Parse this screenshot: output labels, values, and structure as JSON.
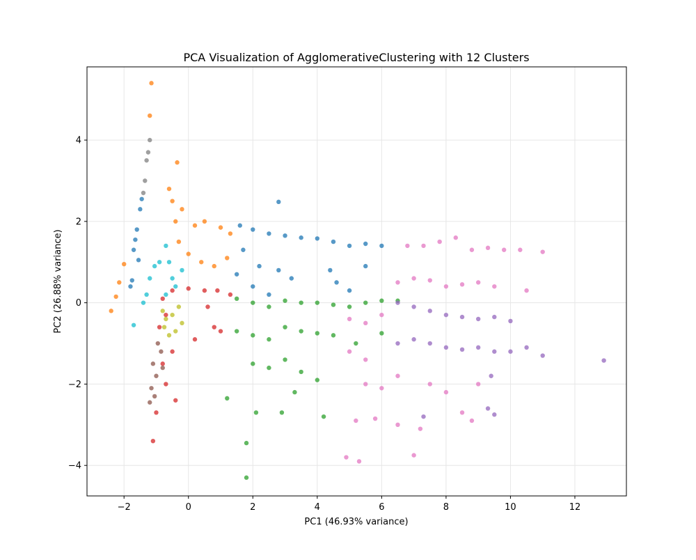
{
  "chart_data": {
    "type": "scatter",
    "title": "PCA Visualization of AgglomerativeClustering with 12 Clusters",
    "xlabel": "PC1 (46.93% variance)",
    "ylabel": "PC2 (26.88% variance)",
    "xlim": [
      -3.15,
      13.6
    ],
    "ylim": [
      -4.75,
      5.8
    ],
    "xticks": [
      -2,
      0,
      2,
      4,
      6,
      8,
      10,
      12
    ],
    "yticks": [
      -4,
      -2,
      0,
      2,
      4
    ],
    "xtick_labels": [
      "−2",
      "0",
      "2",
      "4",
      "6",
      "8",
      "10",
      "12"
    ],
    "ytick_labels": [
      "−4",
      "−2",
      "0",
      "2",
      "4"
    ],
    "grid": true,
    "legend": "none",
    "series": [
      {
        "color": "#1f77b4",
        "points": [
          [
            -1.7,
            1.3
          ],
          [
            -1.6,
            1.8
          ],
          [
            -1.5,
            2.3
          ],
          [
            -1.45,
            2.55
          ],
          [
            -1.65,
            1.55
          ],
          [
            -1.55,
            1.05
          ],
          [
            -1.75,
            0.55
          ],
          [
            -1.8,
            0.4
          ],
          [
            1.6,
            1.9
          ],
          [
            2.0,
            1.8
          ],
          [
            2.5,
            1.7
          ],
          [
            3.0,
            1.65
          ],
          [
            3.5,
            1.6
          ],
          [
            4.0,
            1.58
          ],
          [
            4.5,
            1.5
          ],
          [
            5.0,
            1.4
          ],
          [
            5.5,
            1.45
          ],
          [
            6.0,
            1.4
          ],
          [
            1.5,
            0.7
          ],
          [
            2.2,
            0.9
          ],
          [
            2.8,
            0.8
          ],
          [
            3.2,
            0.6
          ],
          [
            4.4,
            0.8
          ],
          [
            5.5,
            0.9
          ],
          [
            1.7,
            1.3
          ],
          [
            2.0,
            0.4
          ],
          [
            2.5,
            0.2
          ],
          [
            2.8,
            2.48
          ],
          [
            4.6,
            0.5
          ],
          [
            5.0,
            0.3
          ]
        ]
      },
      {
        "color": "#ff7f0e",
        "points": [
          [
            -2.4,
            -0.2
          ],
          [
            -2.25,
            0.15
          ],
          [
            -2.15,
            0.5
          ],
          [
            -2.0,
            0.95
          ],
          [
            -1.15,
            5.4
          ],
          [
            -1.2,
            4.6
          ],
          [
            -0.35,
            3.45
          ],
          [
            -0.6,
            2.8
          ],
          [
            -0.5,
            2.5
          ],
          [
            -0.4,
            2.0
          ],
          [
            -0.3,
            1.5
          ],
          [
            0.0,
            1.2
          ],
          [
            0.5,
            2.0
          ],
          [
            1.0,
            1.85
          ],
          [
            1.3,
            1.7
          ],
          [
            1.2,
            1.1
          ],
          [
            0.8,
            0.9
          ],
          [
            0.4,
            1.0
          ],
          [
            -0.2,
            2.3
          ],
          [
            0.2,
            1.9
          ]
        ]
      },
      {
        "color": "#2ca02c",
        "points": [
          [
            1.5,
            0.1
          ],
          [
            2.0,
            0.0
          ],
          [
            2.5,
            -0.1
          ],
          [
            3.0,
            0.05
          ],
          [
            3.5,
            0.0
          ],
          [
            4.0,
            0.0
          ],
          [
            4.5,
            -0.05
          ],
          [
            5.0,
            -0.1
          ],
          [
            5.5,
            0.0
          ],
          [
            6.0,
            0.05
          ],
          [
            6.5,
            0.05
          ],
          [
            1.5,
            -0.7
          ],
          [
            2.0,
            -0.8
          ],
          [
            2.5,
            -0.9
          ],
          [
            3.0,
            -0.6
          ],
          [
            3.5,
            -0.7
          ],
          [
            4.0,
            -0.75
          ],
          [
            4.5,
            -0.8
          ],
          [
            5.2,
            -1.0
          ],
          [
            6.0,
            -0.75
          ],
          [
            2.0,
            -1.5
          ],
          [
            2.5,
            -1.6
          ],
          [
            3.0,
            -1.4
          ],
          [
            3.5,
            -1.7
          ],
          [
            4.0,
            -1.9
          ],
          [
            1.8,
            -4.3
          ],
          [
            1.8,
            -3.45
          ],
          [
            2.1,
            -2.7
          ],
          [
            2.9,
            -2.7
          ],
          [
            4.2,
            -2.8
          ],
          [
            1.2,
            -2.35
          ],
          [
            3.3,
            -2.2
          ]
        ]
      },
      {
        "color": "#d62728",
        "points": [
          [
            -0.8,
            0.1
          ],
          [
            -0.7,
            -0.3
          ],
          [
            -0.9,
            -0.6
          ],
          [
            -0.5,
            0.3
          ],
          [
            0.0,
            0.35
          ],
          [
            0.5,
            0.3
          ],
          [
            0.9,
            0.3
          ],
          [
            1.3,
            0.2
          ],
          [
            0.6,
            -0.1
          ],
          [
            0.8,
            -0.6
          ],
          [
            1.0,
            -0.7
          ],
          [
            0.2,
            -0.9
          ],
          [
            -0.5,
            -1.2
          ],
          [
            -0.8,
            -1.5
          ],
          [
            -0.7,
            -2.0
          ],
          [
            -1.0,
            -2.7
          ],
          [
            -1.1,
            -3.4
          ],
          [
            -0.4,
            -2.4
          ]
        ]
      },
      {
        "color": "#9467bd",
        "points": [
          [
            6.5,
            0.0
          ],
          [
            7.0,
            -0.1
          ],
          [
            7.5,
            -0.2
          ],
          [
            8.0,
            -0.3
          ],
          [
            8.5,
            -0.35
          ],
          [
            9.0,
            -0.4
          ],
          [
            9.5,
            -0.35
          ],
          [
            10.0,
            -0.45
          ],
          [
            6.5,
            -1.0
          ],
          [
            7.0,
            -0.9
          ],
          [
            7.5,
            -1.0
          ],
          [
            8.0,
            -1.1
          ],
          [
            8.5,
            -1.15
          ],
          [
            9.0,
            -1.1
          ],
          [
            9.5,
            -1.2
          ],
          [
            10.0,
            -1.2
          ],
          [
            10.5,
            -1.1
          ],
          [
            11.0,
            -1.3
          ],
          [
            12.9,
            -1.42
          ],
          [
            9.3,
            -2.6
          ],
          [
            9.5,
            -2.75
          ],
          [
            7.3,
            -2.8
          ],
          [
            9.4,
            -1.8
          ]
        ]
      },
      {
        "color": "#8c564b",
        "points": [
          [
            -1.1,
            -1.5
          ],
          [
            -1.0,
            -1.8
          ],
          [
            -1.15,
            -2.1
          ],
          [
            -1.05,
            -2.3
          ],
          [
            -1.2,
            -2.45
          ],
          [
            -0.85,
            -1.2
          ],
          [
            -0.95,
            -1.0
          ],
          [
            -0.8,
            -1.6
          ]
        ]
      },
      {
        "color": "#e377c2",
        "points": [
          [
            6.8,
            1.4
          ],
          [
            7.3,
            1.4
          ],
          [
            7.8,
            1.5
          ],
          [
            8.3,
            1.6
          ],
          [
            8.8,
            1.3
          ],
          [
            9.3,
            1.35
          ],
          [
            9.8,
            1.3
          ],
          [
            10.3,
            1.3
          ],
          [
            11.0,
            1.25
          ],
          [
            6.5,
            0.5
          ],
          [
            7.0,
            0.6
          ],
          [
            7.5,
            0.55
          ],
          [
            8.0,
            0.4
          ],
          [
            8.5,
            0.45
          ],
          [
            9.0,
            0.5
          ],
          [
            9.5,
            0.4
          ],
          [
            10.5,
            0.3
          ],
          [
            5.0,
            -0.4
          ],
          [
            5.5,
            -0.5
          ],
          [
            6.0,
            -0.3
          ],
          [
            5.0,
            -1.2
          ],
          [
            5.5,
            -1.4
          ],
          [
            6.5,
            -1.8
          ],
          [
            7.5,
            -2.0
          ],
          [
            8.0,
            -2.2
          ],
          [
            9.0,
            -2.0
          ],
          [
            5.5,
            -2.0
          ],
          [
            6.0,
            -2.1
          ],
          [
            5.2,
            -2.9
          ],
          [
            5.8,
            -2.85
          ],
          [
            6.5,
            -3.0
          ],
          [
            7.2,
            -3.1
          ],
          [
            5.3,
            -3.9
          ],
          [
            4.9,
            -3.8
          ],
          [
            7.0,
            -3.75
          ],
          [
            8.5,
            -2.7
          ],
          [
            8.8,
            -2.9
          ]
        ]
      },
      {
        "color": "#7f7f7f",
        "points": [
          [
            -1.2,
            4.0
          ],
          [
            -1.25,
            3.7
          ],
          [
            -1.3,
            3.5
          ],
          [
            -1.35,
            3.0
          ],
          [
            -1.4,
            2.7
          ]
        ]
      },
      {
        "color": "#bcbd22",
        "points": [
          [
            -0.8,
            -0.2
          ],
          [
            -0.7,
            -0.4
          ],
          [
            -0.75,
            -0.6
          ],
          [
            -0.6,
            -0.8
          ],
          [
            -0.5,
            -0.3
          ],
          [
            -0.3,
            -0.1
          ],
          [
            -0.2,
            -0.5
          ],
          [
            -0.4,
            -0.7
          ]
        ]
      },
      {
        "color": "#17becf",
        "points": [
          [
            -1.3,
            0.2
          ],
          [
            -1.2,
            0.6
          ],
          [
            -1.05,
            0.9
          ],
          [
            -1.4,
            0.0
          ],
          [
            -0.9,
            1.0
          ],
          [
            -0.7,
            1.4
          ],
          [
            -0.6,
            1.0
          ],
          [
            -0.5,
            0.6
          ],
          [
            -0.4,
            0.4
          ],
          [
            -0.7,
            0.2
          ],
          [
            -1.7,
            -0.55
          ],
          [
            -0.2,
            0.8
          ]
        ]
      }
    ]
  }
}
